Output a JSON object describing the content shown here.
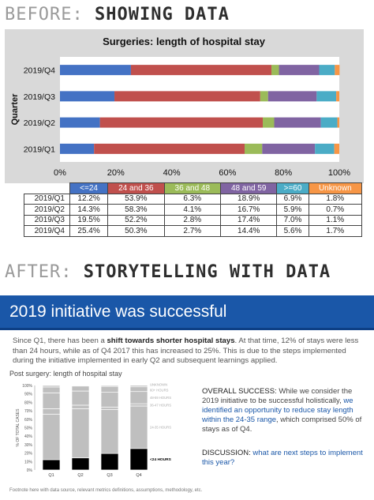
{
  "before": {
    "section_prefix": "BEFORE:",
    "section_title": "SHOWING DATA"
  },
  "after": {
    "section_prefix": "AFTER:",
    "section_title": "STORYTELLING WITH DATA",
    "banner_title": "2019 initiative was successful",
    "intro": {
      "part1": "Since Q1, there has been a ",
      "bold": "shift towards shorter hospital stays",
      "part2": ". At that time, 12% of stays were less than 24 hours, while as of Q4 2017 this has increased to 25%. This is due to the steps implemented during the initiative implemented in early Q2 and subsequent learnings applied."
    },
    "chart_title": "Post surgery: length of hospital stay",
    "success": {
      "head": "OVERALL SUCCESS:",
      "text1": " While we consider the 2019 initiative to be successful holistically, ",
      "highlight": "we identified an opportunity to reduce stay length within the 24-35 range",
      "text2": ", which comprised 50% of stays as of Q4."
    },
    "discussion": {
      "head": "DISCUSSION:",
      "highlight": " what are next steps to implement this year?"
    },
    "footnote": "Footnote here with data source, relevant metrics definitions, assumptions, methodology, etc."
  },
  "table": {
    "headers": [
      "<=24",
      "24 and 36",
      "36 and 48",
      "48 and 59",
      ">=60",
      "Unknown"
    ],
    "rows": [
      {
        "q": "2019/Q1",
        "cells": [
          "12.2%",
          "53.9%",
          "6.3%",
          "18.9%",
          "6.9%",
          "1.8%"
        ]
      },
      {
        "q": "2019/Q2",
        "cells": [
          "14.3%",
          "58.3%",
          "4.1%",
          "16.7%",
          "5.9%",
          "0.7%"
        ]
      },
      {
        "q": "2019/Q3",
        "cells": [
          "19.5%",
          "52.2%",
          "2.8%",
          "17.4%",
          "7.0%",
          "1.1%"
        ]
      },
      {
        "q": "2019/Q4",
        "cells": [
          "25.4%",
          "50.3%",
          "2.7%",
          "14.4%",
          "5.6%",
          "1.7%"
        ]
      }
    ]
  },
  "colors": {
    "le24": "#4472c4",
    "c24_36": "#c0504d",
    "c36_48": "#9bbb59",
    "c48_59": "#8064a2",
    "ge60": "#4bacc6",
    "unknown": "#f79646",
    "plot_bg": "#d9d9d9",
    "accent": "#1a57a8",
    "after_dark": "#000000",
    "after_grey": "#bfbfbf"
  },
  "chart_data": [
    {
      "type": "bar",
      "orientation": "horizontal",
      "stacked": true,
      "title": "Surgeries: length of hospital stay",
      "ylabel": "Quarter",
      "xlabel": "",
      "categories": [
        "2019/Q1",
        "2019/Q2",
        "2019/Q3",
        "2019/Q4"
      ],
      "xlim": [
        0,
        100
      ],
      "xticks": [
        "0%",
        "20%",
        "40%",
        "60%",
        "80%",
        "100%"
      ],
      "series": [
        {
          "name": "<=24",
          "values": [
            12.2,
            14.3,
            19.5,
            25.4
          ]
        },
        {
          "name": "24 and 36",
          "values": [
            53.9,
            58.3,
            52.2,
            50.3
          ]
        },
        {
          "name": "36 and 48",
          "values": [
            6.3,
            4.1,
            2.8,
            2.7
          ]
        },
        {
          "name": "48 and 59",
          "values": [
            18.9,
            16.7,
            17.4,
            14.4
          ]
        },
        {
          "name": ">=60",
          "values": [
            6.9,
            5.9,
            7.0,
            5.6
          ]
        },
        {
          "name": "Unknown",
          "values": [
            1.8,
            0.7,
            1.1,
            1.7
          ]
        }
      ]
    },
    {
      "type": "bar",
      "orientation": "vertical",
      "stacked": true,
      "title": "Post surgery: length of hospital stay",
      "ylabel": "% OF TOTAL CASES",
      "categories": [
        "Q1",
        "Q2",
        "Q3",
        "Q4"
      ],
      "ylim": [
        0,
        100
      ],
      "yticks": [
        "0%",
        "10%",
        "20%",
        "30%",
        "40%",
        "50%",
        "60%",
        "70%",
        "80%",
        "90%",
        "100%"
      ],
      "series": [
        {
          "name": "<24 HOURS",
          "values": [
            12.2,
            14.3,
            19.5,
            25.4
          ]
        },
        {
          "name": "24-35 HOURS",
          "values": [
            53.9,
            58.3,
            52.2,
            50.3
          ]
        },
        {
          "name": "36-47 HOURS",
          "values": [
            6.3,
            4.1,
            2.8,
            2.7
          ]
        },
        {
          "name": "48-59 HOURS",
          "values": [
            18.9,
            16.7,
            17.4,
            14.4
          ]
        },
        {
          "name": "60+ HOURS",
          "values": [
            6.9,
            5.9,
            7.0,
            5.6
          ]
        },
        {
          "name": "UNKNOWN",
          "values": [
            1.8,
            0.7,
            1.1,
            1.7
          ]
        }
      ]
    }
  ]
}
